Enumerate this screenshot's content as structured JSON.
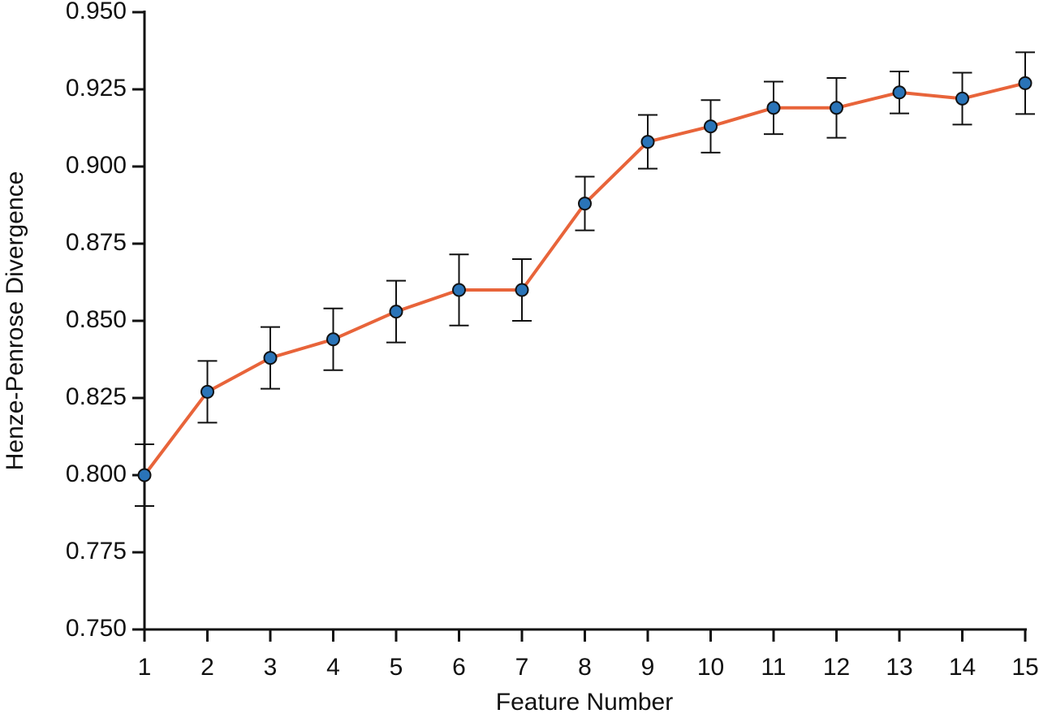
{
  "chart_data": {
    "type": "line",
    "x_label": "Feature Number",
    "y_label": "Henze-Penrose Divergence",
    "x": [
      1,
      2,
      3,
      4,
      5,
      6,
      7,
      8,
      9,
      10,
      11,
      12,
      13,
      14,
      15
    ],
    "series": [
      {
        "color": "#e8643a",
        "marker_color": "#2a74b8",
        "values": [
          0.8,
          0.827,
          0.838,
          0.844,
          0.853,
          0.86,
          0.86,
          0.888,
          0.908,
          0.913,
          0.919,
          0.919,
          0.924,
          0.922,
          0.927
        ],
        "errors": [
          0.01,
          0.01,
          0.01,
          0.01,
          0.01,
          0.0115,
          0.01,
          0.0087,
          0.0087,
          0.0085,
          0.0085,
          0.0097,
          0.0068,
          0.0084,
          0.01
        ]
      }
    ],
    "xlim": [
      1,
      15
    ],
    "xticks": [
      1,
      2,
      3,
      4,
      5,
      6,
      7,
      8,
      9,
      10,
      11,
      12,
      13,
      14,
      15
    ],
    "ylim": [
      0.75,
      0.95
    ],
    "yticks": [
      {
        "value": 0.75,
        "label": "0.750"
      },
      0.775,
      {
        "value": 0.8,
        "label": "0.800"
      },
      0.825,
      {
        "value": 0.85,
        "label": "0.850"
      },
      0.875,
      {
        "value": 0.9,
        "label": "0.900"
      },
      0.925,
      {
        "value": 0.95,
        "label": "0.950"
      }
    ]
  }
}
